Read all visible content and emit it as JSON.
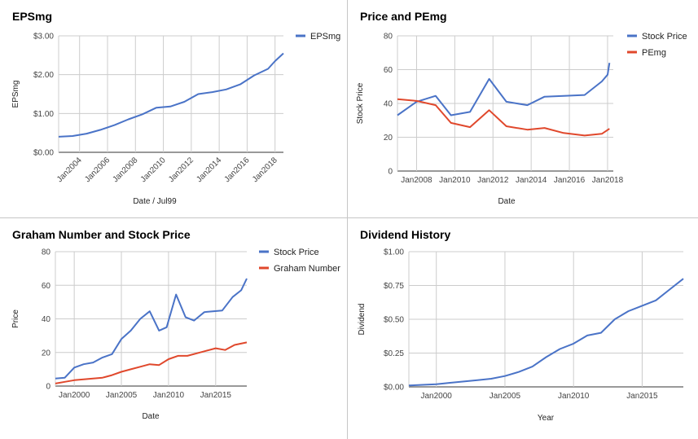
{
  "chart_data": [
    {
      "type": "line",
      "title": "EPSmg",
      "xlabel": "Date / Jul99",
      "ylabel": "EPSmg",
      "xlim": [
        2002.5,
        2018.6
      ],
      "ylim": [
        0,
        3
      ],
      "yticks": [
        0,
        1,
        2,
        3
      ],
      "ytick_labels": [
        "$0.00",
        "$1.00",
        "$2.00",
        "$3.00"
      ],
      "xticks": [
        2004,
        2006,
        2008,
        2010,
        2012,
        2014,
        2016,
        2018
      ],
      "xtick_labels": [
        "Jan2004",
        "Jan2006",
        "Jan2008",
        "Jan2010",
        "Jan2012",
        "Jan2014",
        "Jan2016",
        "Jan2018"
      ],
      "xtick_rotate": true,
      "grid": true,
      "legend": "top-right",
      "colors": [
        "#4a73c7"
      ],
      "series": [
        {
          "name": "EPSmg",
          "x": [
            2002.5,
            2003.5,
            2004.5,
            2005.5,
            2006.5,
            2007.5,
            2008.5,
            2009.5,
            2010.5,
            2011.5,
            2012.5,
            2013.5,
            2014.5,
            2015.5,
            2016.5,
            2017.5,
            2018.0,
            2018.6
          ],
          "y": [
            0.4,
            0.42,
            0.48,
            0.58,
            0.7,
            0.85,
            0.98,
            1.15,
            1.18,
            1.3,
            1.5,
            1.55,
            1.62,
            1.75,
            1.98,
            2.15,
            2.35,
            2.55
          ]
        }
      ]
    },
    {
      "type": "line",
      "title": "Price and PEmg",
      "xlabel": "Date",
      "ylabel": "Stock Price",
      "xlim": [
        2007,
        2018.3
      ],
      "ylim": [
        0,
        80
      ],
      "yticks": [
        0,
        20,
        40,
        60,
        80
      ],
      "ytick_labels": [
        "0",
        "20",
        "40",
        "60",
        "80"
      ],
      "xticks": [
        2008,
        2010,
        2012,
        2014,
        2016,
        2018
      ],
      "xtick_labels": [
        "Jan2008",
        "Jan2010",
        "Jan2012",
        "Jan2014",
        "Jan2016",
        "Jan2018"
      ],
      "xtick_rotate": false,
      "grid": true,
      "legend": "top-right",
      "colors": [
        "#4a73c7",
        "#e0482c"
      ],
      "series": [
        {
          "name": "Stock Price",
          "x": [
            2007,
            2008,
            2009,
            2009.8,
            2010.8,
            2011.8,
            2012.7,
            2013.8,
            2014.7,
            2015.7,
            2016.8,
            2017.7,
            2018.0,
            2018.1
          ],
          "y": [
            33,
            41,
            44.5,
            33,
            35,
            54.5,
            41,
            39,
            44,
            44.5,
            45,
            53,
            57,
            64
          ]
        },
        {
          "name": "PEmg",
          "x": [
            2007,
            2008,
            2009,
            2009.8,
            2010.8,
            2011.8,
            2012.7,
            2013.8,
            2014.7,
            2015.7,
            2016.8,
            2017.7,
            2018.1
          ],
          "y": [
            42.5,
            41.5,
            39,
            28.5,
            26,
            36,
            26.5,
            24.5,
            25.5,
            22.5,
            21,
            22,
            25
          ]
        }
      ]
    },
    {
      "type": "line",
      "title": "Graham Number and Stock Price",
      "xlabel": "Date",
      "ylabel": "Price",
      "xlim": [
        1998,
        2018.3
      ],
      "ylim": [
        0,
        80
      ],
      "yticks": [
        0,
        20,
        40,
        60,
        80
      ],
      "ytick_labels": [
        "0",
        "20",
        "40",
        "60",
        "80"
      ],
      "xticks": [
        2000,
        2005,
        2010,
        2015
      ],
      "xtick_labels": [
        "Jan2000",
        "Jan2005",
        "Jan2010",
        "Jan2015"
      ],
      "xtick_rotate": false,
      "grid": true,
      "legend": "top-right",
      "colors": [
        "#4a73c7",
        "#e0482c"
      ],
      "series": [
        {
          "name": "Stock Price",
          "x": [
            1998,
            1999,
            2000,
            2001,
            2002,
            2003,
            2004,
            2005,
            2006,
            2007,
            2008,
            2009,
            2009.8,
            2010.8,
            2011.8,
            2012.7,
            2013.8,
            2014.7,
            2015.7,
            2016.8,
            2017.7,
            2018.3
          ],
          "y": [
            4.5,
            5,
            11,
            13,
            14,
            17,
            19,
            28,
            33,
            40,
            44.5,
            33,
            35,
            54.5,
            41,
            39,
            44,
            44.5,
            45,
            53,
            57,
            64
          ]
        },
        {
          "name": "Graham Number",
          "x": [
            1998,
            1999,
            2000,
            2001,
            2002,
            2003,
            2004,
            2005,
            2006,
            2007,
            2008,
            2009,
            2010,
            2011,
            2012,
            2013,
            2014,
            2015,
            2016,
            2017,
            2018.3
          ],
          "y": [
            1.5,
            2.5,
            3.5,
            4,
            4.5,
            5,
            6.5,
            8.5,
            10,
            11.5,
            13,
            12.5,
            16,
            18,
            18,
            19.5,
            21,
            22.5,
            21.5,
            24.5,
            26
          ]
        }
      ]
    },
    {
      "type": "line",
      "title": "Dividend History",
      "xlabel": "Year",
      "ylabel": "Dividend",
      "xlim": [
        1998,
        2018
      ],
      "ylim": [
        0,
        1
      ],
      "yticks": [
        0,
        0.25,
        0.5,
        0.75,
        1
      ],
      "ytick_labels": [
        "$0.00",
        "$0.25",
        "$0.50",
        "$0.75",
        "$1.00"
      ],
      "xticks": [
        2000,
        2005,
        2010,
        2015
      ],
      "xtick_labels": [
        "Jan2000",
        "Jan2005",
        "Jan2010",
        "Jan2015"
      ],
      "xtick_rotate": false,
      "grid": true,
      "legend": "none",
      "colors": [
        "#4a73c7"
      ],
      "series": [
        {
          "x": [
            1998,
            1999,
            2000,
            2001,
            2002,
            2003,
            2004,
            2005,
            2006,
            2007,
            2008,
            2009,
            2010,
            2011,
            2012,
            2013,
            2014,
            2015,
            2016,
            2017,
            2018
          ],
          "y": [
            0.01,
            0.015,
            0.02,
            0.03,
            0.04,
            0.05,
            0.06,
            0.08,
            0.11,
            0.15,
            0.22,
            0.28,
            0.32,
            0.38,
            0.4,
            0.5,
            0.56,
            0.6,
            0.64,
            0.72,
            0.8
          ]
        }
      ]
    }
  ]
}
